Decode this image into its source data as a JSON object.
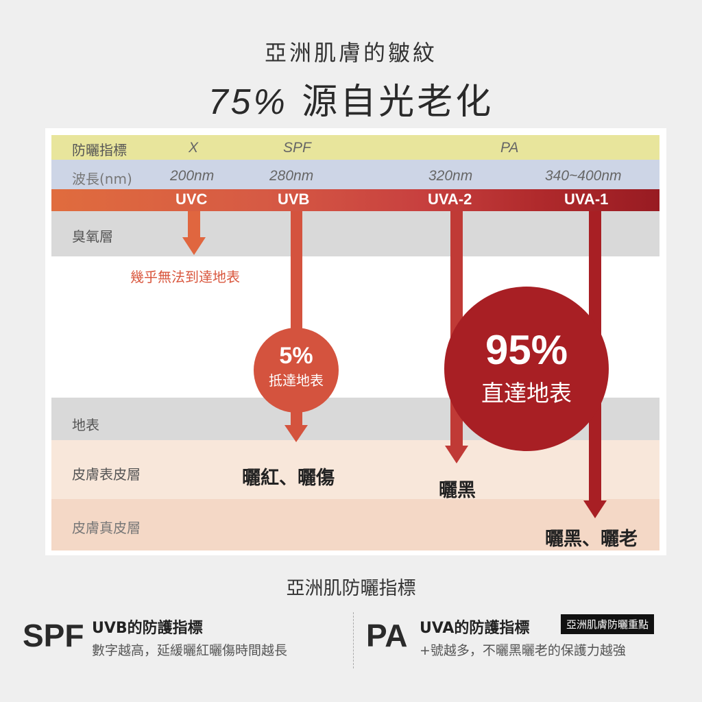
{
  "title": {
    "line1": "亞洲肌膚的皺紋",
    "percent": "75%",
    "line2": "源自光老化"
  },
  "table": {
    "index_label": "防曬指標",
    "index_values": [
      "X",
      "SPF",
      "PA"
    ],
    "wavelength_label": "波長(nm)",
    "wavelengths": [
      "200nm",
      "280nm",
      "320nm",
      "340~400nm"
    ],
    "bands": [
      "UVC",
      "UVB",
      "UVA-2",
      "UVA-1"
    ],
    "layers": {
      "ozone": "臭氧層",
      "ground": "地表",
      "epidermis": "皮膚表皮層",
      "dermis": "皮膚真皮層"
    }
  },
  "annotations": {
    "uvc_note": "幾乎無法到達地表",
    "uvb_pct": "5%",
    "uvb_reach": "抵達地表",
    "uva_pct": "95%",
    "uva_reach": "直達地表",
    "uvb_effect": "曬紅、曬傷",
    "uva2_effect": "曬黑",
    "uva1_effect": "曬黑、曬老"
  },
  "colors": {
    "uvc": "#e0663f",
    "uvb": "#d4533e",
    "uva2": "#c03a36",
    "uva1": "#a81f24",
    "index_row": "#e8e59c",
    "wavelength_row": "#cdd5e6",
    "layer_gray": "#d9d9d9",
    "epidermis": "#f8e7da",
    "dermis": "#f4d8c6"
  },
  "legend": {
    "title": "亞洲肌防曬指標",
    "spf": {
      "abbr": "SPF",
      "heading": "UVB的防護指標",
      "desc": "數字越高，延緩曬紅曬傷時間越長"
    },
    "pa": {
      "abbr": "PA",
      "heading": "UVA的防護指標",
      "badge": "亞洲肌膚防曬重點",
      "desc": "+號越多，不曬黑曬老的保護力越強"
    }
  }
}
